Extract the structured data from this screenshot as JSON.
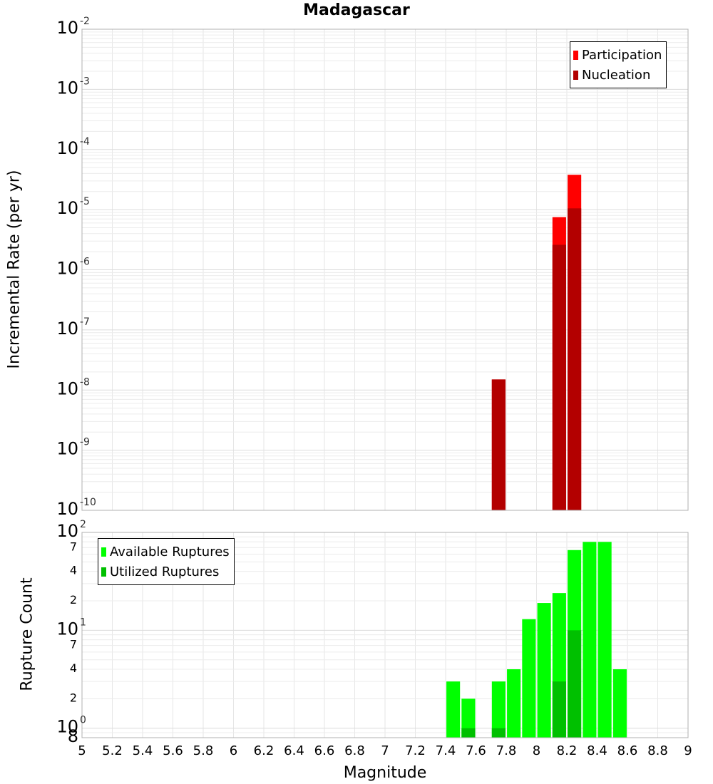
{
  "chart_data": [
    {
      "type": "bar",
      "title": "Madagascar",
      "xlabel": "",
      "ylabel": "Incremental Rate (per yr)",
      "yscale": "log",
      "xlim": [
        5,
        9
      ],
      "ylim": [
        1e-10,
        0.01
      ],
      "y_tick_labels": [
        {
          "base": "10",
          "exp": "-2"
        },
        {
          "base": "10",
          "exp": "-3"
        },
        {
          "base": "10",
          "exp": "-4"
        },
        {
          "base": "10",
          "exp": "-5"
        },
        {
          "base": "10",
          "exp": "-6"
        },
        {
          "base": "10",
          "exp": "-7"
        },
        {
          "base": "10",
          "exp": "-8"
        },
        {
          "base": "10",
          "exp": "-9"
        },
        {
          "base": "10",
          "exp": "-10"
        }
      ],
      "grid": true,
      "legend_position": "top-right",
      "bar_width": 0.09,
      "series": [
        {
          "name": "Participation",
          "color": "#ff0000",
          "x": [
            7.75,
            8.15,
            8.25
          ],
          "values": [
            1.5e-08,
            7.5e-06,
            3.8e-05
          ]
        },
        {
          "name": "Nucleation",
          "color": "#b30000",
          "x": [
            7.75,
            8.15,
            8.25
          ],
          "values": [
            1.5e-08,
            2.6e-06,
            1.05e-05
          ]
        }
      ]
    },
    {
      "type": "bar",
      "title": "",
      "xlabel": "Magnitude",
      "ylabel": "Rupture Count",
      "yscale": "log",
      "xlim": [
        5,
        9
      ],
      "ylim": [
        0.8,
        100
      ],
      "y_tick_labels": [
        {
          "base": "10",
          "exp": "2"
        },
        {
          "base": "7",
          "exp": ""
        },
        {
          "base": "4",
          "exp": ""
        },
        {
          "base": "2",
          "exp": ""
        },
        {
          "base": "10",
          "exp": "1"
        },
        {
          "base": "7",
          "exp": ""
        },
        {
          "base": "4",
          "exp": ""
        },
        {
          "base": "2",
          "exp": ""
        },
        {
          "base": "10",
          "exp": "0"
        },
        {
          "base": "8",
          "exp": ""
        }
      ],
      "x_tick_labels": [
        "5",
        "5.2",
        "5.4",
        "5.6",
        "5.8",
        "6",
        "6.2",
        "6.4",
        "6.6",
        "6.8",
        "7",
        "7.2",
        "7.4",
        "7.6",
        "7.8",
        "8",
        "8.2",
        "8.4",
        "8.6",
        "8.8",
        "9"
      ],
      "grid": true,
      "legend_position": "top-left",
      "bar_width": 0.09,
      "series": [
        {
          "name": "Available Ruptures",
          "color": "#00ff00",
          "x": [
            7.45,
            7.55,
            7.75,
            7.85,
            7.95,
            8.05,
            8.15,
            8.25,
            8.35,
            8.45,
            8.55
          ],
          "values": [
            3,
            2,
            3,
            4,
            13,
            19,
            24,
            66,
            80,
            80,
            4
          ]
        },
        {
          "name": "Utilized Ruptures",
          "color": "#00c000",
          "x": [
            7.55,
            7.75,
            8.15,
            8.25
          ],
          "values": [
            1,
            1,
            3,
            10
          ]
        }
      ]
    }
  ]
}
